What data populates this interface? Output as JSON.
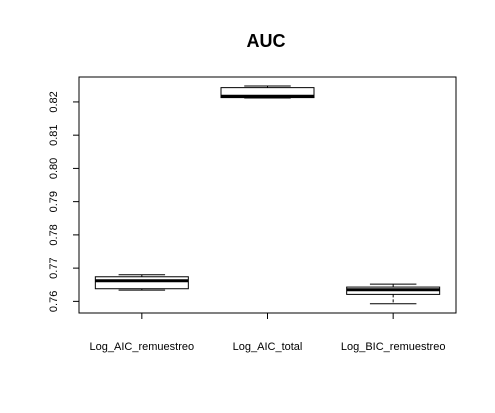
{
  "chart_data": {
    "type": "boxplot",
    "title": "AUC",
    "xlabel": "",
    "ylabel": "",
    "ylim": [
      0.7565,
      0.8275
    ],
    "yticks": [
      0.76,
      0.77,
      0.78,
      0.79,
      0.8,
      0.81,
      0.82
    ],
    "ytick_labels": [
      "0.76",
      "0.77",
      "0.78",
      "0.79",
      "0.80",
      "0.81",
      "0.82"
    ],
    "grid": false,
    "categories": [
      "Log_AIC_remuestreo",
      "Log_AIC_total",
      "Log_BIC_remuestreo"
    ],
    "boxes": [
      {
        "whisker_low": 0.7634,
        "q1": 0.7638,
        "median": 0.7662,
        "q3": 0.7674,
        "whisker_high": 0.768
      },
      {
        "whisker_low": 0.8212,
        "q1": 0.8213,
        "median": 0.8217,
        "q3": 0.8243,
        "whisker_high": 0.8248
      },
      {
        "whisker_low": 0.7593,
        "q1": 0.7621,
        "median": 0.7635,
        "q3": 0.7643,
        "whisker_high": 0.7652
      }
    ]
  }
}
